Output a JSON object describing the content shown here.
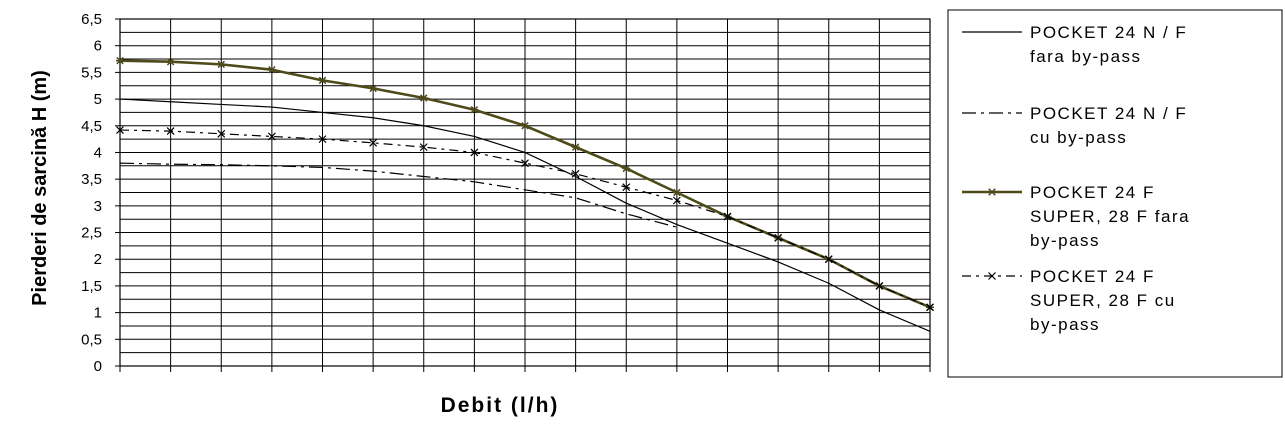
{
  "chart_data": {
    "type": "line",
    "title": "",
    "xlabel": "Debit (l/h)",
    "ylabel": "Pierderi de sarcină H (m)",
    "ylim": [
      0,
      6.5
    ],
    "yticks": [
      "0",
      "0,5",
      "1",
      "1,5",
      "2",
      "2,5",
      "3",
      "3,5",
      "4",
      "4,5",
      "5",
      "5,5",
      "6",
      "6,5"
    ],
    "x_categories": 16,
    "grid": true,
    "legend_position": "right",
    "series": [
      {
        "name": "POCKET 24 N / F fara by-pass",
        "legend_lines": [
          "POCKET 24 N / F",
          "fara by-pass"
        ],
        "style": "solid",
        "color": "#000000",
        "x": [
          0,
          1,
          2,
          3,
          4,
          5,
          6,
          7,
          8,
          9,
          10,
          11,
          12,
          13,
          14,
          15,
          16
        ],
        "values": [
          5.0,
          4.95,
          4.9,
          4.85,
          4.75,
          4.65,
          4.5,
          4.3,
          4.0,
          3.55,
          3.05,
          2.65,
          2.3,
          1.95,
          1.55,
          1.05,
          0.65
        ]
      },
      {
        "name": "POCKET 24 N / F cu by-pass",
        "legend_lines": [
          "POCKET 24 N / F",
          "cu by-pass"
        ],
        "style": "dashdot",
        "color": "#000000",
        "x": [
          0,
          1,
          2,
          3,
          4,
          5,
          6,
          7,
          8,
          9,
          10,
          11
        ],
        "values": [
          3.8,
          3.78,
          3.77,
          3.75,
          3.72,
          3.65,
          3.55,
          3.45,
          3.3,
          3.15,
          2.85,
          2.6
        ]
      },
      {
        "name": "POCKET 24 F SUPER, 28 F fara by-pass",
        "legend_lines": [
          "POCKET 24 F",
          "SUPER, 28 F fara",
          "by-pass"
        ],
        "style": "solid-thick-markers",
        "color": "#4f4a1a",
        "x": [
          0,
          1,
          2,
          3,
          4,
          5,
          6,
          7,
          8,
          9,
          10,
          11,
          12,
          13,
          14,
          15,
          16
        ],
        "values": [
          5.72,
          5.7,
          5.65,
          5.55,
          5.35,
          5.2,
          5.02,
          4.8,
          4.5,
          4.1,
          3.7,
          3.25,
          2.8,
          2.4,
          2.0,
          1.5,
          1.1
        ]
      },
      {
        "name": "POCKET 24 F SUPER, 28 F cu by-pass",
        "legend_lines": [
          "POCKET 24 F",
          "SUPER, 28 F cu",
          "by-pass"
        ],
        "style": "dashed-x-markers",
        "color": "#000000",
        "x": [
          0,
          1,
          2,
          3,
          4,
          5,
          6,
          7,
          8,
          9,
          10,
          11,
          12,
          13,
          14,
          15,
          16
        ],
        "values": [
          4.42,
          4.4,
          4.35,
          4.3,
          4.25,
          4.18,
          4.1,
          4.0,
          3.8,
          3.6,
          3.35,
          3.1,
          2.8,
          2.4,
          2.0,
          1.5,
          1.1
        ]
      }
    ]
  }
}
